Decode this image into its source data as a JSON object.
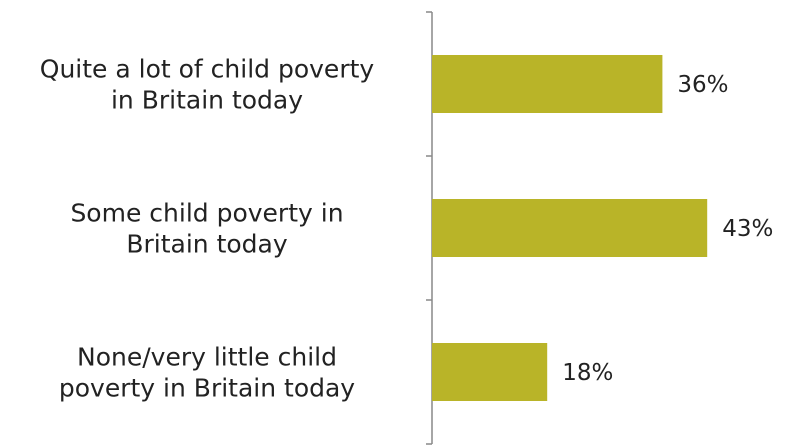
{
  "chart_data": {
    "type": "bar",
    "orientation": "horizontal",
    "categories": [
      "Quite a lot of child poverty in Britain today",
      "Some child poverty in Britain today",
      "None/very little child poverty in Britain today"
    ],
    "category_label_lines": [
      [
        "Quite a lot of child poverty",
        "in Britain today"
      ],
      [
        "Some child poverty in",
        "Britain today"
      ],
      [
        "None/very little child",
        "poverty in Britain today"
      ]
    ],
    "values": [
      36,
      43,
      18
    ],
    "value_labels": [
      "36%",
      "43%",
      "18%"
    ],
    "unit": "%",
    "xlim": [
      0,
      50
    ],
    "bar_color": "#B9B428",
    "axis_color": "#888888",
    "grid": false,
    "legend": "none"
  }
}
